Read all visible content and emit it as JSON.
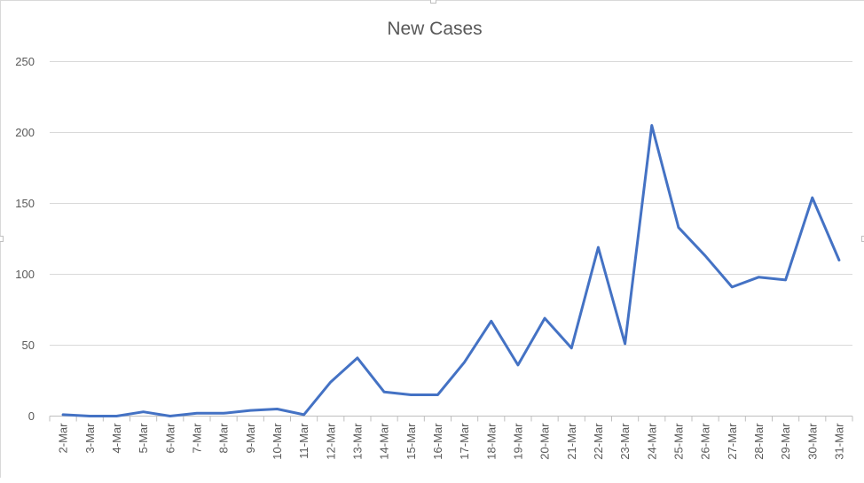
{
  "chart_data": {
    "type": "line",
    "title": "New Cases",
    "xlabel": "",
    "ylabel": "",
    "ylim": [
      0,
      250
    ],
    "yticks": [
      0,
      50,
      100,
      150,
      200,
      250
    ],
    "grid": true,
    "legend": "none",
    "categories": [
      "2-Mar",
      "3-Mar",
      "4-Mar",
      "5-Mar",
      "6-Mar",
      "7-Mar",
      "8-Mar",
      "9-Mar",
      "10-Mar",
      "11-Mar",
      "12-Mar",
      "13-Mar",
      "14-Mar",
      "15-Mar",
      "16-Mar",
      "17-Mar",
      "18-Mar",
      "19-Mar",
      "20-Mar",
      "21-Mar",
      "22-Mar",
      "23-Mar",
      "24-Mar",
      "25-Mar",
      "26-Mar",
      "27-Mar",
      "28-Mar",
      "29-Mar",
      "30-Mar",
      "31-Mar"
    ],
    "series": [
      {
        "color": "#4472c4",
        "values": [
          1,
          0,
          0,
          3,
          0,
          2,
          2,
          4,
          5,
          1,
          24,
          41,
          17,
          15,
          15,
          38,
          67,
          36,
          69,
          48,
          119,
          51,
          205,
          133,
          113,
          91,
          98,
          96,
          154,
          110
        ]
      }
    ],
    "colors": {
      "line": "#4472c4",
      "grid": "#d9d9d9",
      "axis": "#bfbfbf",
      "text": "#595959"
    }
  }
}
